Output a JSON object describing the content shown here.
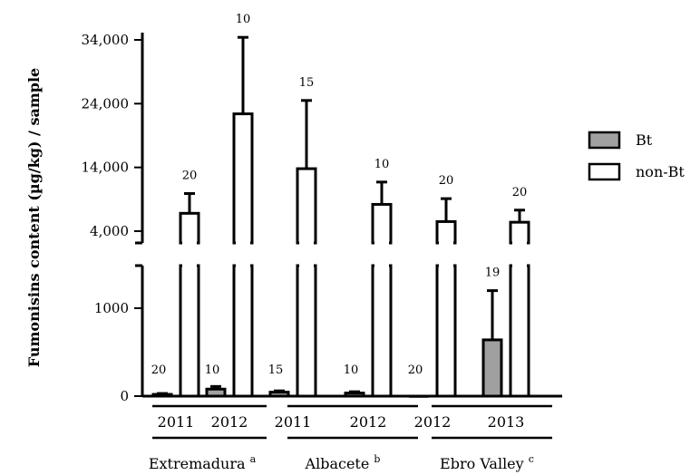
{
  "chart_data": {
    "type": "bar",
    "ylabel": "Fumonisins content (µg/kg) / sample",
    "y_axis": {
      "broken": true,
      "lower_range": [
        0,
        1500
      ],
      "upper_range": [
        2500,
        34000
      ],
      "lower_ticks": [
        "0",
        "1000"
      ],
      "upper_ticks": [
        "4,000",
        "14,000",
        "24,000",
        "34,000"
      ]
    },
    "legend_position": "right",
    "series": [
      {
        "name": "Bt",
        "color": "#a0a0a0"
      },
      {
        "name": "non-Bt",
        "color": "#ffffff"
      }
    ],
    "groups": [
      {
        "region": "Extremadura",
        "superscript": "a",
        "year": "2011",
        "bt": {
          "value": 20,
          "err": 10,
          "n": "20"
        },
        "nonbt": {
          "value": 6800,
          "err": 3100,
          "n": "20"
        }
      },
      {
        "region": "Extremadura",
        "superscript": "a",
        "year": "2012",
        "bt": {
          "value": 80,
          "err": 30,
          "n": "10"
        },
        "nonbt": {
          "value": 22400,
          "err": 12000,
          "n": "10"
        }
      },
      {
        "region": "Albacete",
        "superscript": "b",
        "year": "2011",
        "bt": {
          "value": 45,
          "err": 15,
          "n": "15"
        },
        "nonbt": {
          "value": 13800,
          "err": 10700,
          "n": "15"
        }
      },
      {
        "region": "Albacete",
        "superscript": "b",
        "year": "2012",
        "bt": {
          "value": 35,
          "err": 15,
          "n": "10"
        },
        "nonbt": {
          "value": 8200,
          "err": 3500,
          "n": "10"
        }
      },
      {
        "region": "Ebro Valley",
        "superscript": "c",
        "year": "2012",
        "bt": {
          "value": 5,
          "err": 0,
          "n": "20"
        },
        "nonbt": {
          "value": 5500,
          "err": 3600,
          "n": "20"
        }
      },
      {
        "region": "Ebro Valley",
        "superscript": "c",
        "year": "2013",
        "bt": {
          "value": 640,
          "err": 560,
          "n": "19"
        },
        "nonbt": {
          "value": 5400,
          "err": 1900,
          "n": "20"
        }
      }
    ],
    "regions": [
      {
        "name": "Extremadura",
        "superscript": "a"
      },
      {
        "name": "Albacete",
        "superscript": "b"
      },
      {
        "name": "Ebro Valley",
        "superscript": "c"
      }
    ]
  }
}
